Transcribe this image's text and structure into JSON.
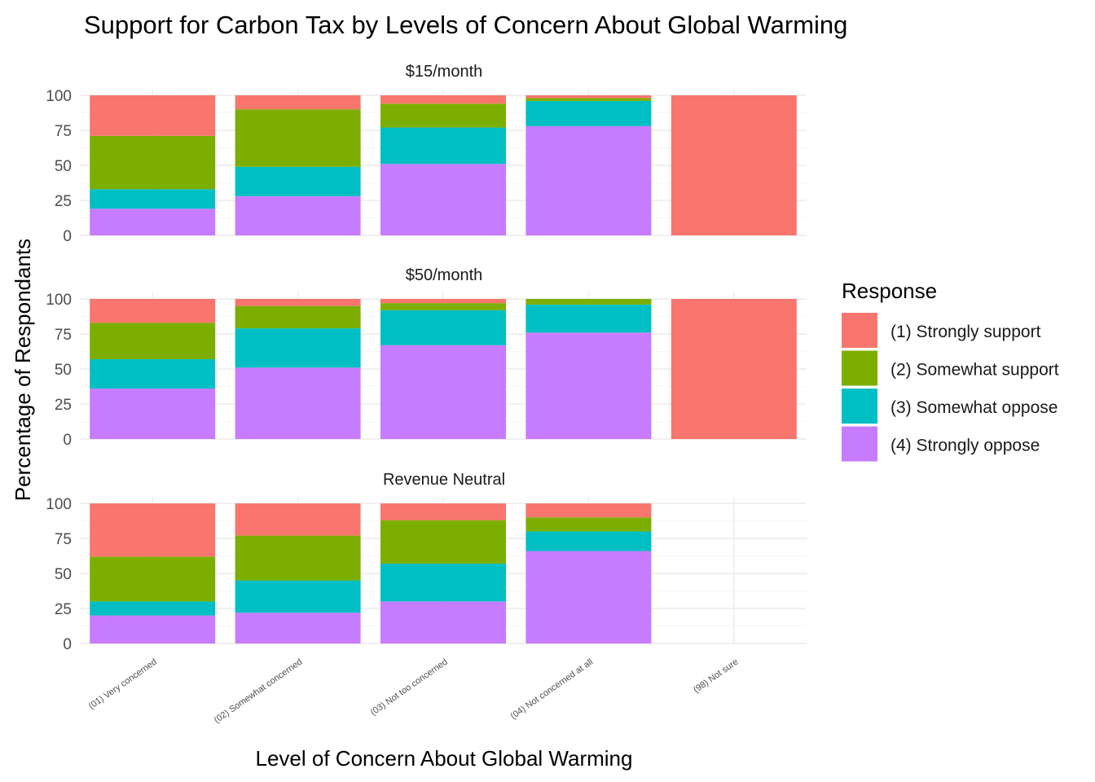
{
  "chart_data": {
    "type": "bar",
    "stacked": true,
    "title": "Support for Carbon Tax by Levels of Concern About Global Warming",
    "xlabel": "Level of Concern About Global Warming",
    "ylabel": "Percentage of Respondants",
    "ylim": [
      0,
      100
    ],
    "yticks": [
      "0",
      "25",
      "50",
      "75",
      "100"
    ],
    "grid": true,
    "categories": [
      "(01) Very concerned",
      "(02) Somewhat concerned",
      "(03) Not too concerned",
      "(04) Not concerned at all",
      "(98) Not sure"
    ],
    "legend": {
      "title": "Response",
      "position": "right",
      "entries": [
        {
          "label": "(1) Strongly support",
          "color": "#F8766D"
        },
        {
          "label": "(2) Somewhat support",
          "color": "#7CAE00"
        },
        {
          "label": "(3) Somewhat oppose",
          "color": "#00BFC4"
        },
        {
          "label": "(4) Strongly oppose",
          "color": "#C77CFF"
        }
      ]
    },
    "facets": [
      {
        "label": "$15/month",
        "series": [
          {
            "name": "(1) Strongly support",
            "values": [
              29,
              10,
              6,
              2,
              100
            ]
          },
          {
            "name": "(2) Somewhat support",
            "values": [
              38,
              41,
              17,
              2,
              0
            ]
          },
          {
            "name": "(3) Somewhat oppose",
            "values": [
              14,
              21,
              26,
              18,
              0
            ]
          },
          {
            "name": "(4) Strongly oppose",
            "values": [
              19,
              28,
              51,
              78,
              0
            ]
          }
        ]
      },
      {
        "label": "$50/month",
        "series": [
          {
            "name": "(1) Strongly support",
            "values": [
              17,
              5,
              3,
              0,
              100
            ]
          },
          {
            "name": "(2) Somewhat support",
            "values": [
              26,
              16,
              5,
              4,
              0
            ]
          },
          {
            "name": "(3) Somewhat oppose",
            "values": [
              21,
              28,
              25,
              20,
              0
            ]
          },
          {
            "name": "(4) Strongly oppose",
            "values": [
              36,
              51,
              67,
              76,
              0
            ]
          }
        ]
      },
      {
        "label": "Revenue Neutral",
        "series": [
          {
            "name": "(1) Strongly support",
            "values": [
              38,
              23,
              12,
              10,
              0
            ]
          },
          {
            "name": "(2) Somewhat support",
            "values": [
              32,
              32,
              31,
              10,
              0
            ]
          },
          {
            "name": "(3) Somewhat oppose",
            "values": [
              10,
              23,
              27,
              14,
              0
            ]
          },
          {
            "name": "(4) Strongly oppose",
            "values": [
              20,
              22,
              30,
              66,
              0
            ]
          }
        ]
      }
    ]
  }
}
